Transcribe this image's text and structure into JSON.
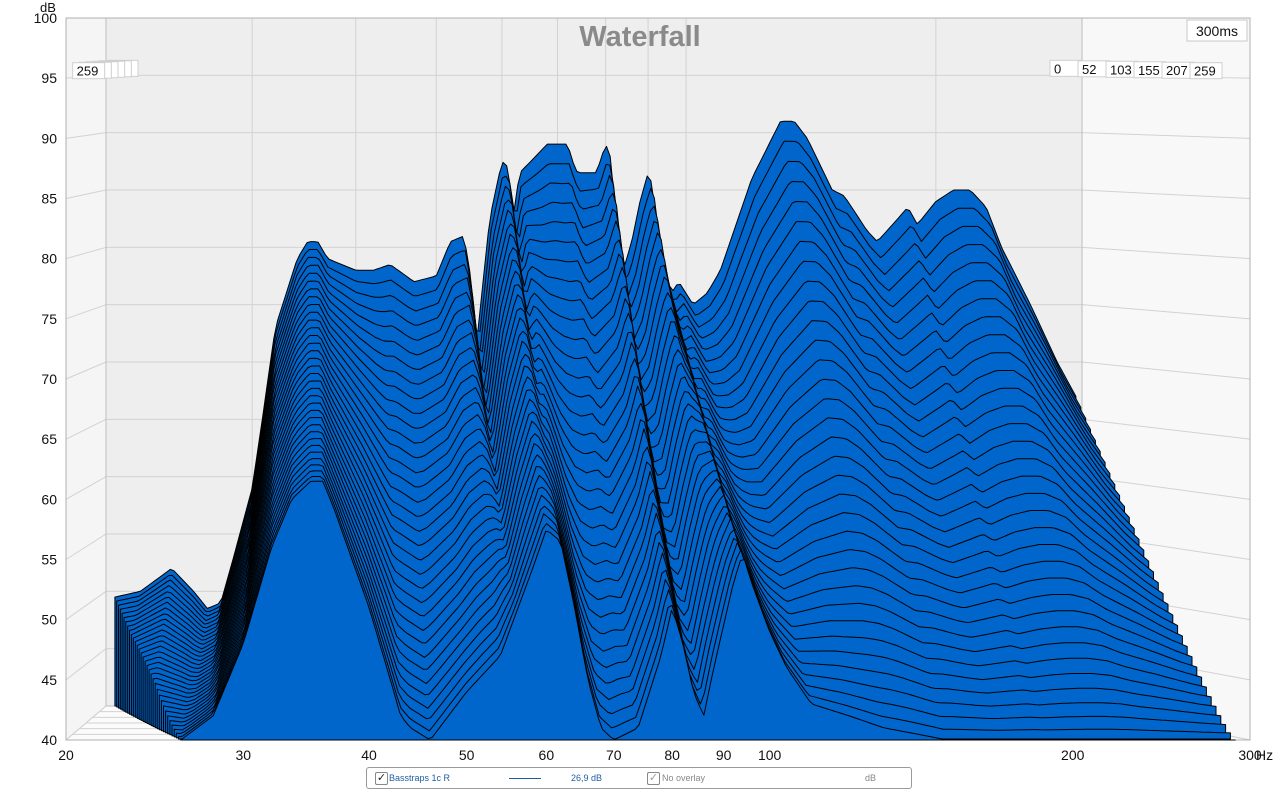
{
  "chart_data": {
    "type": "area",
    "title": "Waterfall",
    "y_unit": "dB",
    "x_unit": "Hz",
    "time_window_label": "300ms",
    "x_scale": "log",
    "xlim": [
      20,
      300
    ],
    "ylim": [
      40,
      100
    ],
    "x_ticks": [
      "20",
      "30",
      "40",
      "50",
      "60",
      "70",
      "80",
      "90",
      "100",
      "200",
      "300"
    ],
    "y_ticks": [
      "100",
      "95",
      "90",
      "85",
      "80",
      "75",
      "70",
      "65",
      "60",
      "55",
      "50",
      "45",
      "40"
    ],
    "time_slice_labels": [
      "0",
      "52",
      "103",
      "155",
      "207",
      "259"
    ],
    "grid": true,
    "fill_color": "#0066cc",
    "line_color": "#000000",
    "first_slice": {
      "x": [
        20.5,
        22,
        24,
        25.5,
        26.5,
        27.5,
        28.5,
        30,
        31,
        32,
        34,
        35,
        36,
        37,
        40,
        42,
        44,
        46,
        47,
        50,
        52,
        54,
        55,
        56,
        58,
        60,
        61,
        62,
        63,
        65,
        66,
        67,
        68,
        72,
        73,
        74,
        78,
        80,
        81,
        82,
        83,
        84,
        86,
        88,
        90,
        91,
        92,
        94,
        96,
        98,
        102,
        106,
        108,
        110,
        120,
        130,
        135,
        140,
        150,
        155,
        160,
        165,
        170,
        180,
        185,
        190,
        200,
        210,
        220,
        230,
        240,
        260,
        280,
        295
      ],
      "y": [
        49.5,
        50,
        52,
        50,
        48.5,
        49,
        53,
        59,
        66,
        73,
        79,
        80.5,
        80.5,
        79,
        78,
        78,
        78.5,
        77.5,
        77,
        77.5,
        80.5,
        81,
        77.5,
        72,
        82.5,
        87.5,
        87,
        83,
        86.5,
        87.5,
        88,
        88.5,
        89,
        89,
        87.5,
        86.5,
        86.5,
        89,
        88,
        84,
        81,
        78,
        80.5,
        84,
        86.5,
        85.5,
        82.5,
        78.5,
        76,
        77,
        75,
        76,
        77,
        78,
        86,
        91,
        91,
        89.5,
        85,
        84.5,
        83,
        81.5,
        80.5,
        82.5,
        83.5,
        82,
        84,
        85,
        85,
        83.5,
        80,
        75,
        70,
        67
      ]
    },
    "back_slice": {
      "x": [
        26,
        28,
        30,
        32,
        33.5,
        35,
        36,
        37,
        40,
        42,
        43,
        44,
        46,
        50,
        54,
        58,
        60,
        62,
        64,
        66,
        68,
        70,
        74,
        78,
        80,
        82,
        84,
        86,
        88,
        92,
        94,
        96,
        100,
        104,
        110,
        120,
        130,
        140,
        150,
        160,
        170,
        180,
        190,
        200,
        210,
        230,
        250,
        270,
        290
      ],
      "y": [
        40,
        42,
        48,
        56,
        60,
        61.5,
        61.5,
        59,
        51,
        45,
        42,
        41,
        40,
        44,
        47,
        54,
        57.5,
        56.5,
        51,
        45,
        41,
        40,
        41,
        47,
        51,
        48,
        44,
        42,
        46,
        53,
        55.5,
        53,
        49,
        46,
        43,
        42,
        41,
        40.5,
        40,
        40,
        40,
        40,
        40,
        40,
        40,
        40,
        40,
        40,
        40
      ]
    }
  },
  "legend": {
    "series_label": "Basstraps 1c R",
    "series_value": "26,9 dB",
    "overlay_label": "No overlay",
    "overlay_unit": "dB",
    "series_checked": true,
    "overlay_checked": true,
    "series_color": "#1f5fa0"
  }
}
